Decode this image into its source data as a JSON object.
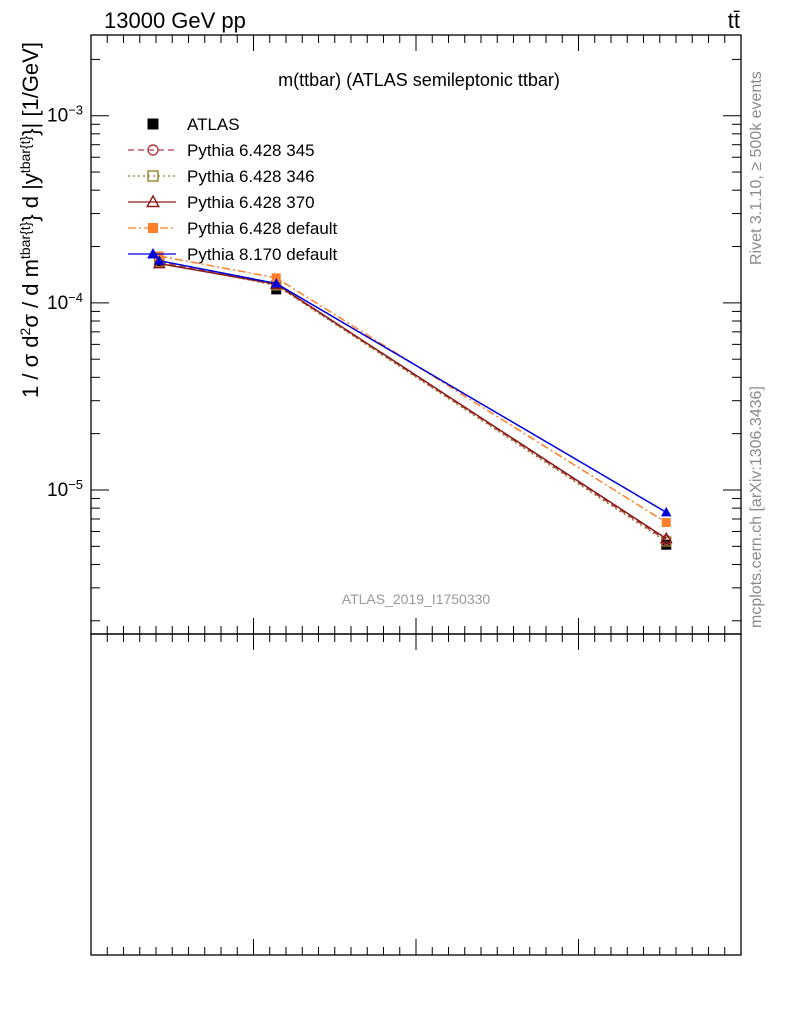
{
  "header": {
    "energy_label": "13000 GeV pp",
    "process_label": "tt̄"
  },
  "side_labels": {
    "rivet": "Rivet 3.1.10, ≥ 500k events",
    "source": "mcplots.cern.ch [arXiv:1306.3436]"
  },
  "watermark": "ATLAS_2019_I1750330",
  "chart_data": {
    "type": "line",
    "title": "m(ttbar) (ATLAS semileptonic ttbar)",
    "ylabel": "1 / σ d²σ / d m^{tbar{t}} d |y^{tbar{t}}| [1/GeV]",
    "yscale": "log",
    "ylim": [
      1.7e-06,
      0.0027
    ],
    "xlim": [
      0,
      1000
    ],
    "ytick_labels": [
      "10^{-3}",
      "10^{-4}",
      "10^{-5}"
    ],
    "ytick_values": [
      0.001,
      0.0001,
      1e-05
    ],
    "legend_position": "top-left",
    "x": [
      105,
      285,
      885
    ],
    "series": [
      {
        "name": "ATLAS",
        "color": "#000000",
        "marker": "square-filled",
        "dash": "none",
        "values": [
          0.000165,
          0.000118,
          5.1e-06
        ]
      },
      {
        "name": "Pythia 6.428 345",
        "color": "#b23a48",
        "marker": "circle-open",
        "dash": "6,4",
        "values": [
          0.000165,
          0.000125,
          5.4e-06
        ]
      },
      {
        "name": "Pythia 6.428 346",
        "color": "#9a7a2a",
        "marker": "square-open",
        "dash": "2,3",
        "values": [
          0.000165,
          0.000124,
          5.3e-06
        ]
      },
      {
        "name": "Pythia 6.428 370",
        "color": "#8b1a1a",
        "marker": "triangle-open",
        "dash": "none",
        "values": [
          0.000162,
          0.000126,
          5.5e-06
        ]
      },
      {
        "name": "Pythia 6.428 default",
        "color": "#ff7f2a",
        "marker": "square-filled",
        "dash": "8,3,2,3",
        "values": [
          0.000178,
          0.000136,
          6.7e-06
        ]
      },
      {
        "name": "Pythia 8.170 default",
        "color": "#0000dd",
        "marker": "triangle-filled",
        "dash": "none",
        "values": [
          0.000168,
          0.000127,
          7.6e-06
        ]
      }
    ]
  }
}
